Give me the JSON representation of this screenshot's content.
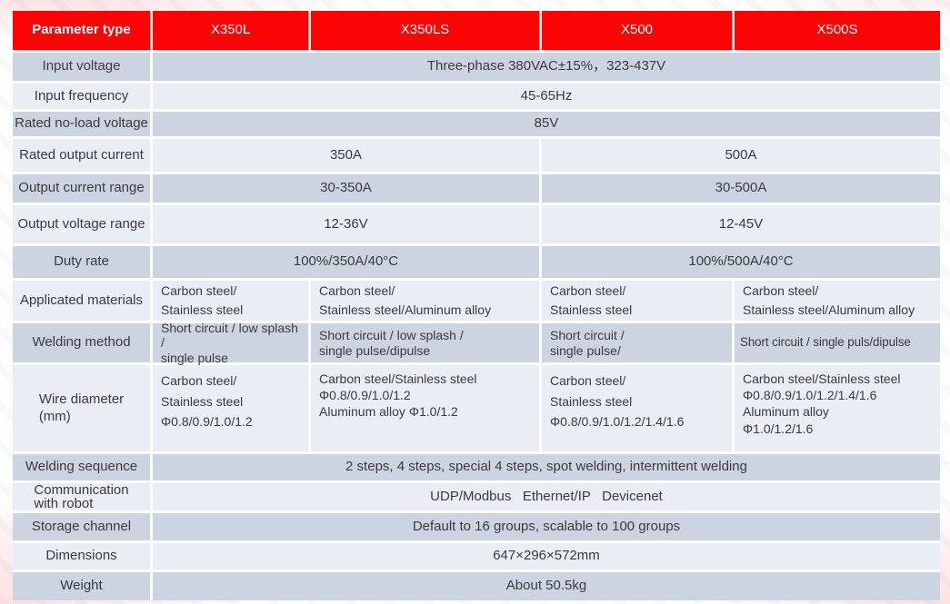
{
  "colors": {
    "header_bg": "#fb0406",
    "header_text": "#ffffff",
    "row_dark": "#cdd4e1",
    "row_light": "#e9edf4",
    "text": "#3b3b3b"
  },
  "header": {
    "param_label": "Parameter type",
    "models": [
      "X350L",
      "X350LS",
      "X500",
      "X500S"
    ]
  },
  "rows": {
    "input_voltage": {
      "label": "Input voltage",
      "value": "Three-phase 380VAC±15%，323-437V"
    },
    "input_frequency": {
      "label": "Input frequency",
      "value": "45-65Hz"
    },
    "rated_no_load_voltage": {
      "label": "Rated no-load voltage",
      "value": "85V"
    },
    "rated_output_current": {
      "label": "Rated output current",
      "x350": "350A",
      "x500": "500A"
    },
    "output_current_range": {
      "label": "Output current range",
      "x350": "30-350A",
      "x500": "30-500A"
    },
    "output_voltage_range": {
      "label": "Output voltage range",
      "x350": "12-36V",
      "x500": "12-45V"
    },
    "duty_rate": {
      "label": "Duty rate",
      "x350": "100%/350A/40°C",
      "x500": "100%/500A/40°C"
    },
    "applicated_materials": {
      "label": "Applicated materials",
      "cells": [
        "Carbon steel/\nStainless steel",
        "Carbon steel/\nStainless steel/Aluminum alloy",
        "Carbon steel/\nStainless steel",
        "Carbon steel/\nStainless steel/Aluminum alloy"
      ]
    },
    "welding_method": {
      "label": "Welding method",
      "cells": [
        "Short circuit / low splash /\nsingle pulse",
        "Short circuit / low splash /\nsingle pulse/dipulse",
        "Short circuit /\nsingle pulse/",
        "Short circuit / single puls/dipulse"
      ]
    },
    "wire_diameter": {
      "label": "Wire diameter\n(mm)",
      "cells": [
        "Carbon steel/\nStainless steel\nΦ0.8/0.9/1.0/1.2",
        "Carbon steel/Stainless steel\nΦ0.8/0.9/1.0/1.2\nAluminum alloy Φ1.0/1.2",
        "Carbon steel/\nStainless steel\nΦ0.8/0.9/1.0/1.2/1.4/1.6",
        "Carbon steel/Stainless steel\nΦ0.8/0.9/1.0/1.2/1.4/1.6\nAluminum alloy\nΦ1.0/1.2/1.6"
      ]
    },
    "welding_sequence": {
      "label": "Welding sequence",
      "value": "2 steps, 4 steps, special 4 steps, spot welding, intermittent welding"
    },
    "communication": {
      "label": "Communication\nwith robot",
      "value": "UDP/Modbus   Ethernet/IP   Devicenet"
    },
    "storage_channel": {
      "label": "Storage channel",
      "value": "Default to 16 groups, scalable to 100 groups"
    },
    "dimensions": {
      "label": "Dimensions",
      "value": "647×296×572mm"
    },
    "weight": {
      "label": "Weight",
      "value": "About 50.5kg"
    }
  }
}
